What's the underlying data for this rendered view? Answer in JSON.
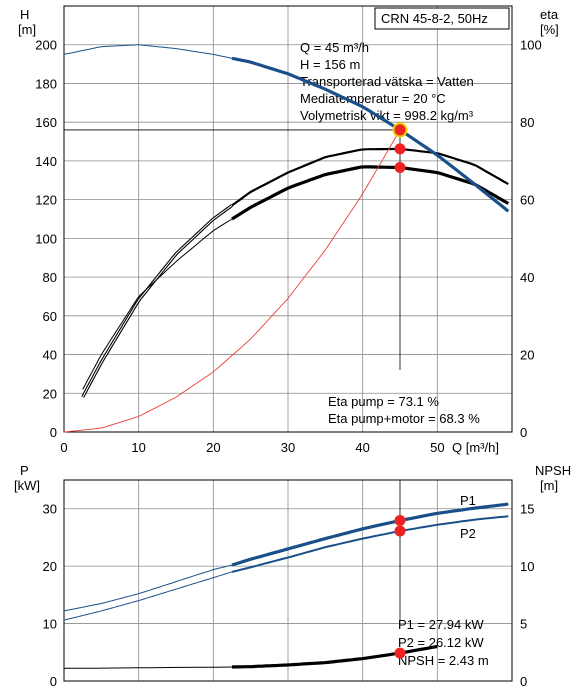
{
  "colors": {
    "head_curve": "#1b4f8a",
    "power_curve": "#1b4f8a",
    "system_curve": "#e8403a",
    "eta_curve": "#000000",
    "npsh_curve": "#000000",
    "marker_fill": "#ee2222",
    "marker_ring": "#f2d100",
    "grid": "#8c8c8c"
  },
  "top": {
    "model_label": "CRN 45-8-2, 50Hz",
    "left_axis_title": "H",
    "left_axis_unit": "[m]",
    "right_axis_title": "eta",
    "right_axis_unit": "[%]",
    "x_axis_label": "Q [m³/h]",
    "info_lines": [
      "Q = 45 m³/h",
      "H = 156 m",
      "Transporterad vätska = Vatten",
      "Mediatemperatur = 20 °C",
      "Volymetrisk vikt = 998.2 kg/m³"
    ],
    "eta_lines": [
      "Eta pump = 73.1 %",
      "Eta pump+motor = 68.3 %"
    ]
  },
  "bottom": {
    "left_axis_title": "P",
    "left_axis_unit": "[kW]",
    "right_axis_title": "NPSH",
    "right_axis_unit": "[m]",
    "p1_label": "P1",
    "p2_label": "P2",
    "info_lines": [
      "P1 = 27.94 kW",
      "P2 = 26.12 kW",
      "NPSH = 2.43 m"
    ]
  },
  "chart_data": [
    {
      "type": "line",
      "xlabel": "Q [m³/h]",
      "ylabel": "H [m]",
      "y2label": "eta [%]",
      "xlim": [
        0,
        60
      ],
      "ylim": [
        0,
        220
      ],
      "y2lim": [
        0,
        110
      ],
      "x_ticks": [
        0,
        10,
        20,
        30,
        40,
        50
      ],
      "y_ticks": [
        0,
        20,
        40,
        60,
        80,
        100,
        120,
        140,
        160,
        180,
        200
      ],
      "y2_ticks": [
        0,
        20,
        40,
        60,
        80,
        100
      ],
      "series": [
        {
          "kind": "head",
          "axis": "left",
          "x": [
            0,
            5,
            10,
            15,
            20,
            22.5,
            25,
            30,
            35,
            40,
            45,
            50,
            55,
            59.5
          ],
          "y": [
            195,
            199,
            200,
            198,
            195,
            193,
            191,
            185,
            177,
            168,
            156,
            143,
            128,
            114
          ],
          "duty_range": [
            22.5,
            59.5
          ]
        },
        {
          "kind": "system",
          "axis": "left",
          "x": [
            0,
            5,
            10,
            15,
            20,
            25,
            30,
            35,
            40,
            45
          ],
          "y": [
            0,
            2,
            8,
            18,
            31,
            48,
            69,
            94,
            123,
            156
          ]
        },
        {
          "kind": "eta_pump",
          "axis": "right",
          "x": [
            2.5,
            5,
            10,
            15,
            20,
            22.5,
            25,
            30,
            35,
            40,
            45,
            50,
            55,
            59.5
          ],
          "y": [
            9,
            18,
            34,
            46,
            55,
            58.5,
            62,
            67,
            71,
            73,
            73.1,
            72,
            69,
            64
          ],
          "duty_range": [
            22.5,
            59.5
          ]
        },
        {
          "kind": "eta_pump_motor",
          "axis": "right",
          "x": [
            2.5,
            5,
            10,
            15,
            20,
            22.5,
            25,
            30,
            35,
            40,
            45,
            50,
            55,
            59.5
          ],
          "y": [
            11,
            20,
            35,
            44,
            52,
            55,
            58,
            63,
            66.5,
            68.5,
            68.3,
            67,
            64,
            59
          ],
          "duty_range": [
            22.5,
            59.5
          ]
        }
      ],
      "duty_point": {
        "Q": 45,
        "H": 156,
        "eta_pump": 73.1,
        "eta_pump_motor": 68.3
      }
    },
    {
      "type": "line",
      "ylabel": "P [kW]",
      "y2label": "NPSH [m]",
      "xlim": [
        0,
        60
      ],
      "ylim": [
        0,
        35
      ],
      "y2lim": [
        0,
        17.5
      ],
      "y_ticks": [
        0,
        10,
        20,
        30
      ],
      "y2_ticks": [
        0,
        5,
        10,
        15
      ],
      "series": [
        {
          "name": "P1",
          "axis": "left",
          "x": [
            0,
            5,
            10,
            15,
            20,
            22.5,
            25,
            30,
            35,
            40,
            45,
            50,
            55,
            59.5
          ],
          "y": [
            12.2,
            13.5,
            15.2,
            17.3,
            19.4,
            20.2,
            21.2,
            23.0,
            24.8,
            26.5,
            27.94,
            29.2,
            30.1,
            30.8
          ],
          "duty_range": [
            22.5,
            59.5
          ]
        },
        {
          "name": "P2",
          "axis": "left",
          "x": [
            0,
            5,
            10,
            15,
            20,
            22.5,
            25,
            30,
            35,
            40,
            45,
            50,
            55,
            59.5
          ],
          "y": [
            10.6,
            12.2,
            14.0,
            16.0,
            18.0,
            19.0,
            19.8,
            21.5,
            23.3,
            24.8,
            26.12,
            27.2,
            28.1,
            28.7
          ],
          "duty_range": [
            22.5,
            59.5
          ]
        },
        {
          "name": "NPSH",
          "axis": "right",
          "x": [
            0,
            5,
            10,
            15,
            20,
            22.5,
            25,
            30,
            35,
            40,
            45,
            50
          ],
          "y": [
            1.1,
            1.12,
            1.15,
            1.18,
            1.2,
            1.22,
            1.25,
            1.4,
            1.6,
            1.95,
            2.43,
            3.0
          ],
          "duty_range": [
            22.5,
            50
          ]
        }
      ],
      "duty_point": {
        "Q": 45,
        "P1": 27.94,
        "P2": 26.12,
        "NPSH": 2.43
      }
    }
  ]
}
